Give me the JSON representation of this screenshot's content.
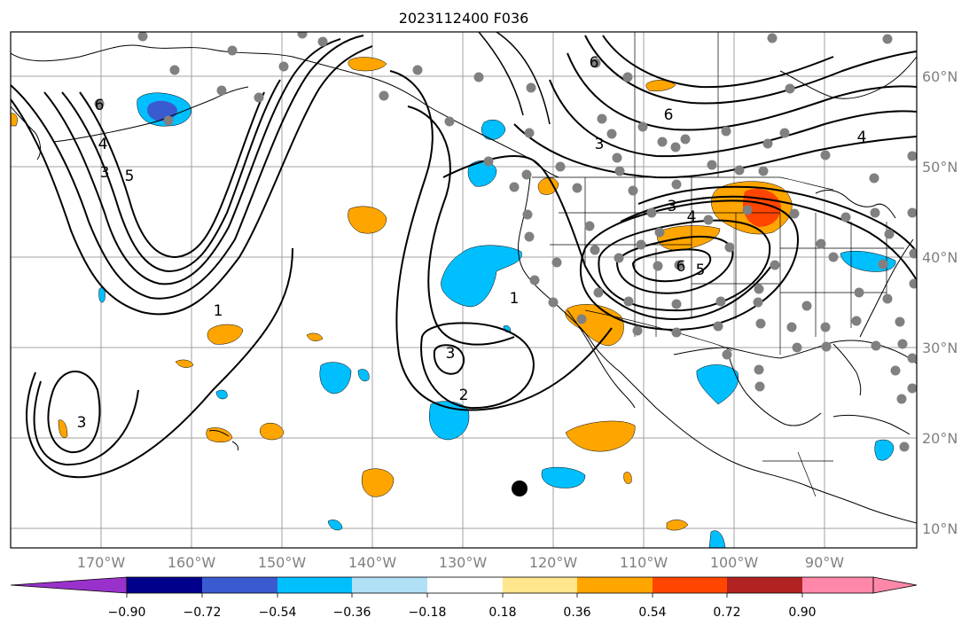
{
  "title": "2023112400 F036",
  "colors": {
    "c1": "#9932cc",
    "c2": "#00008b",
    "c3": "#3a5bd0",
    "c4": "#00bfff",
    "c5": "#b0e0f6",
    "c6": "#ffffff",
    "c7": "#ffe68c",
    "c8": "#ffa500",
    "c9": "#ff4500",
    "c10": "#b22222",
    "c11": "#ff88aa",
    "station": "#808080",
    "contour": "#000000",
    "coast": "#000000",
    "grid": "#a0a0a0"
  },
  "lon_ticks": [
    "170°W",
    "160°W",
    "150°W",
    "140°W",
    "130°W",
    "120°W",
    "110°W",
    "100°W",
    "90°W"
  ],
  "lat_ticks": [
    "60°N",
    "50°N",
    "40°N",
    "30°N",
    "20°N",
    "10°N"
  ],
  "colorbar": {
    "ticks": [
      "−0.90",
      "−0.72",
      "−0.54",
      "−0.36",
      "−0.18",
      "0.18",
      "0.36",
      "0.54",
      "0.72",
      "0.90"
    ]
  },
  "contour_labels": [
    {
      "text": "6"
    },
    {
      "text": "4"
    },
    {
      "text": "3"
    },
    {
      "text": "5"
    },
    {
      "text": "1"
    },
    {
      "text": "3"
    },
    {
      "text": "6"
    },
    {
      "text": "3"
    },
    {
      "text": "4"
    },
    {
      "text": "3"
    },
    {
      "text": "4"
    },
    {
      "text": "6"
    },
    {
      "text": "5"
    },
    {
      "text": "1"
    },
    {
      "text": "3"
    },
    {
      "text": "2"
    },
    {
      "text": "6"
    }
  ]
}
